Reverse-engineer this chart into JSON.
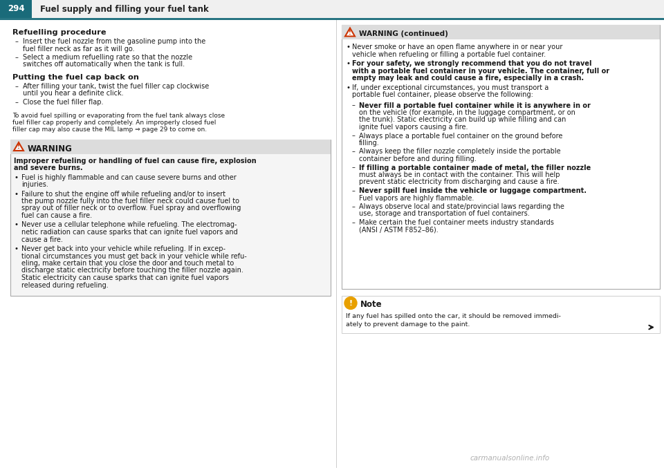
{
  "page_num": "294",
  "header_title": "Fuel supply and filling your fuel tank",
  "header_bg": "#1a6b7a",
  "header_text_color": "#ffffff",
  "header_title_color": "#222222",
  "bg_color": "#ffffff",
  "text_color": "#1a1a1a",
  "watermark": "carmanualsonline.info",
  "left": {
    "heading1": "Refuelling procedure",
    "dash_items1": [
      [
        "Insert the fuel nozzle from the gasoline pump into the",
        "fuel filler neck as far as it will go."
      ],
      [
        "Select a medium refuelling rate so that the nozzle",
        "switches off automatically when the tank is full."
      ]
    ],
    "heading2": "Putting the fuel cap back on",
    "dash_items2": [
      [
        "After filling your tank, twist the fuel filler cap clockwise",
        "until you hear a definite click."
      ],
      [
        "Close the fuel filler flap."
      ]
    ],
    "note1": [
      "To avoid fuel spilling or evaporating from the fuel tank always close",
      "fuel filler cap properly and completely. An improperly closed fuel",
      "filler cap may also cause the MIL lamp ⇒ page 29 to come on."
    ],
    "warn_title": "WARNING",
    "warn_intro": [
      "Improper refueling or handling of fuel can cause fire, explosion",
      "and severe burns."
    ],
    "warn_bullets": [
      [
        "Fuel is highly flammable and can cause severe burns and other",
        "injuries."
      ],
      [
        "Failure to shut the engine off while refueling and/or to insert",
        "the pump nozzle fully into the fuel filler neck could cause fuel to",
        "spray out of filler neck or to overflow. Fuel spray and overflowing",
        "fuel can cause a fire."
      ],
      [
        "Never use a cellular telephone while refueling. The electromag-",
        "netic radiation can cause sparks that can ignite fuel vapors and",
        "cause a fire."
      ],
      [
        "Never get back into your vehicle while refueling. If in excep-",
        "tional circumstances you must get back in your vehicle while refu-",
        "eling, make certain that you close the door and touch metal to",
        "discharge static electricity before touching the filler nozzle again.",
        "Static electricity can cause sparks that can ignite fuel vapors",
        "released during refueling."
      ]
    ]
  },
  "right": {
    "warn_cont_title": "WARNING (continued)",
    "warn_cont_bullets": [
      [
        "Never smoke or have an open flame anywhere in or near your",
        "vehicle when refueling or filling a portable fuel container."
      ],
      [
        "For your safety, we strongly recommend that you do not travel",
        "with a portable fuel container in your vehicle. The container, full or",
        "empty may leak and could cause a fire, especially in a crash."
      ],
      [
        "If, under exceptional circumstances, you must transport a",
        "portable fuel container, please observe the following:"
      ]
    ],
    "sub_dashes": [
      [
        true,
        "Never fill a portable fuel container while it is anywhere in or",
        "on the vehicle (for example, in the luggage compartment, or on",
        "the trunk). Static electricity can build up while filling and can",
        "ignite fuel vapors causing a fire."
      ],
      [
        false,
        "Always place a portable fuel container on the ground before",
        "filling."
      ],
      [
        false,
        "Always keep the filler nozzle completely inside the portable",
        "container before and during filling."
      ],
      [
        true,
        "If filling a portable container made of metal, the filler nozzle",
        "must always be in contact with the container. This will help",
        "prevent static electricity from discharging and cause a fire."
      ],
      [
        true,
        "Never spill fuel inside the vehicle or luggage compartment.",
        "Fuel vapors are highly flammable."
      ],
      [
        false,
        "Always observe local and state/provincial laws regarding the",
        "use, storage and transportation of fuel containers."
      ],
      [
        false,
        "Make certain the fuel container meets industry standards",
        "(ANSI / ASTM F852–86)."
      ]
    ],
    "note_title": "Note",
    "note_text": [
      "If any fuel has spilled onto the car, it should be removed immedi-",
      "ately to prevent damage to the paint."
    ]
  }
}
